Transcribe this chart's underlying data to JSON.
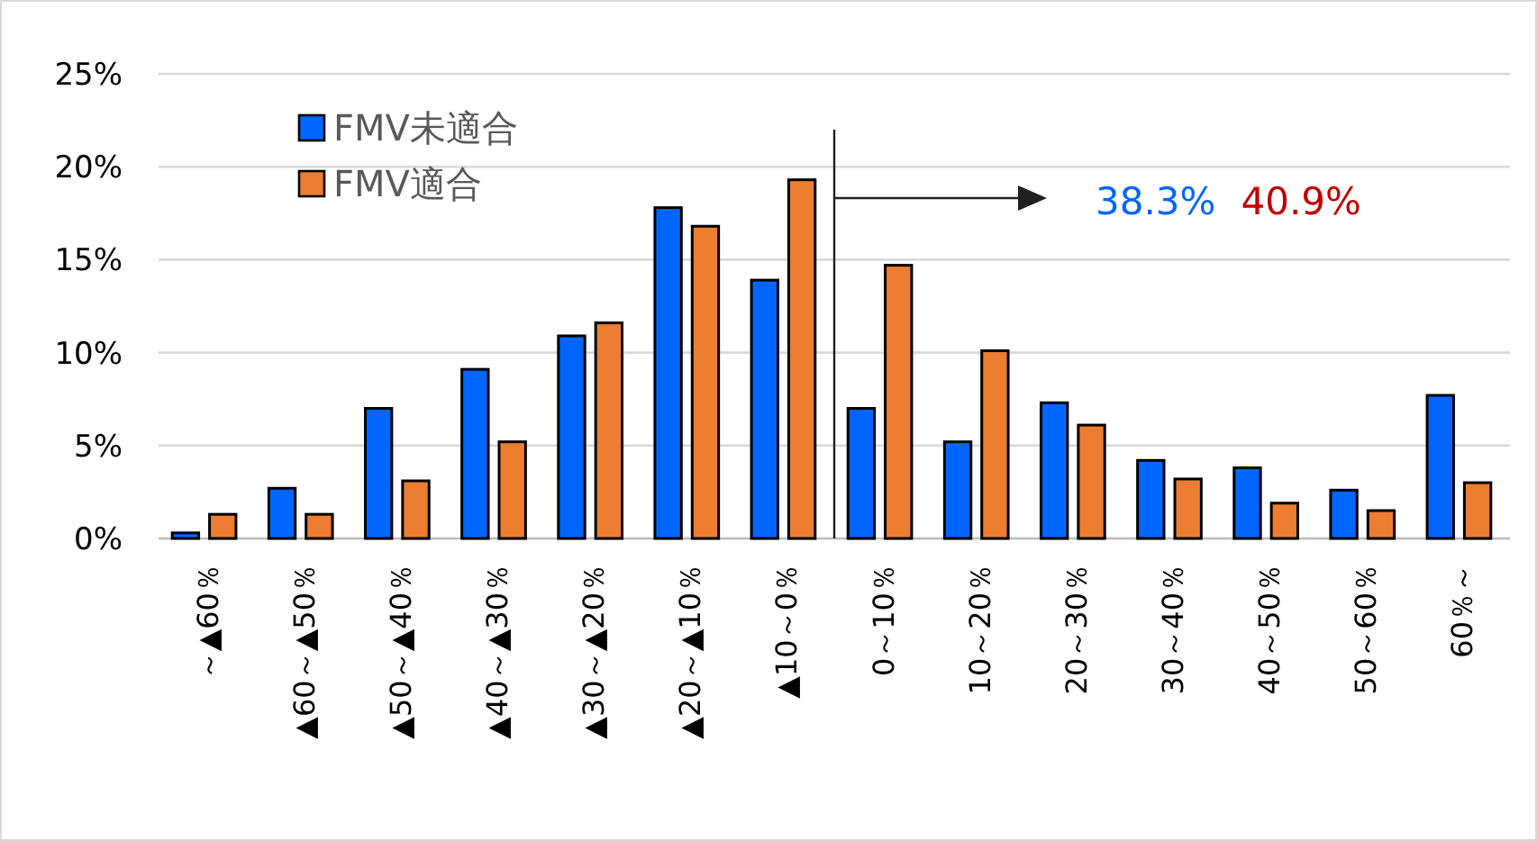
{
  "chart_data": {
    "type": "bar",
    "categories": [
      "～▲60％",
      "▲60～▲50％",
      "▲50～▲40％",
      "▲40～▲30％",
      "▲30～▲20％",
      "▲20～▲10％",
      "▲10～0％",
      "0～10％",
      "10～20％",
      "20～30％",
      "30～40％",
      "40～50％",
      "50～60％",
      "60％～"
    ],
    "series": [
      {
        "name": "FMV未適合",
        "color": "#0066ff",
        "values": [
          0.3,
          2.7,
          7.0,
          9.1,
          10.9,
          17.8,
          13.9,
          7.0,
          5.2,
          7.3,
          4.2,
          3.8,
          2.6,
          7.7
        ]
      },
      {
        "name": "FMV適合",
        "color": "#ed7d31",
        "values": [
          1.3,
          1.3,
          3.1,
          5.2,
          11.6,
          16.8,
          19.3,
          14.7,
          10.1,
          6.1,
          3.2,
          1.9,
          1.5,
          3.0
        ]
      }
    ],
    "ylim": [
      0,
      25
    ],
    "yticks": [
      {
        "value": 0,
        "label": "0%"
      },
      {
        "value": 5,
        "label": "5%"
      },
      {
        "value": 10,
        "label": "10%"
      },
      {
        "value": 15,
        "label": "15%"
      },
      {
        "value": 20,
        "label": "20%"
      },
      {
        "value": 25,
        "label": "25%"
      }
    ],
    "grid": "y",
    "legend": "top left",
    "annotations": [
      "38.3%",
      "40.9%"
    ]
  }
}
